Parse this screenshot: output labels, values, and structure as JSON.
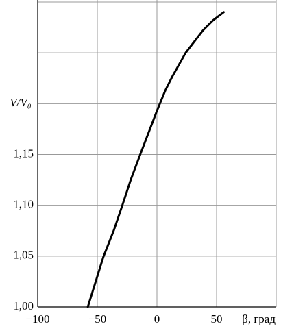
{
  "chart_data": {
    "type": "line",
    "x_label": "β, град",
    "y_label": "V/V₀",
    "x": [
      -58,
      -45,
      -36,
      -29,
      -22,
      -14,
      0,
      7,
      13,
      24,
      38.5,
      47,
      56
    ],
    "series": [
      {
        "color": "#000000",
        "values": [
          1.0,
          1.049,
          1.076,
          1.1,
          1.125,
          1.15,
          1.193,
          1.213,
          1.227,
          1.25,
          1.272,
          1.282,
          1.29
        ]
      }
    ],
    "xlim": [
      -100,
      100
    ],
    "xticks": [
      -100,
      -50,
      0,
      50,
      {
        "value": 100,
        "label": null
      }
    ],
    "ylim": [
      1.0,
      1.3
    ],
    "yticks": [
      {
        "value": 1.0,
        "label": "1,00"
      },
      {
        "value": 1.05,
        "label": "1,05"
      },
      {
        "value": 1.1,
        "label": "1,10"
      },
      {
        "value": 1.15,
        "label": "1,15"
      },
      {
        "value": 1.2,
        "label": null
      },
      {
        "value": 1.25,
        "label": null
      },
      {
        "value": 1.3,
        "label": null
      }
    ],
    "grid": true
  }
}
